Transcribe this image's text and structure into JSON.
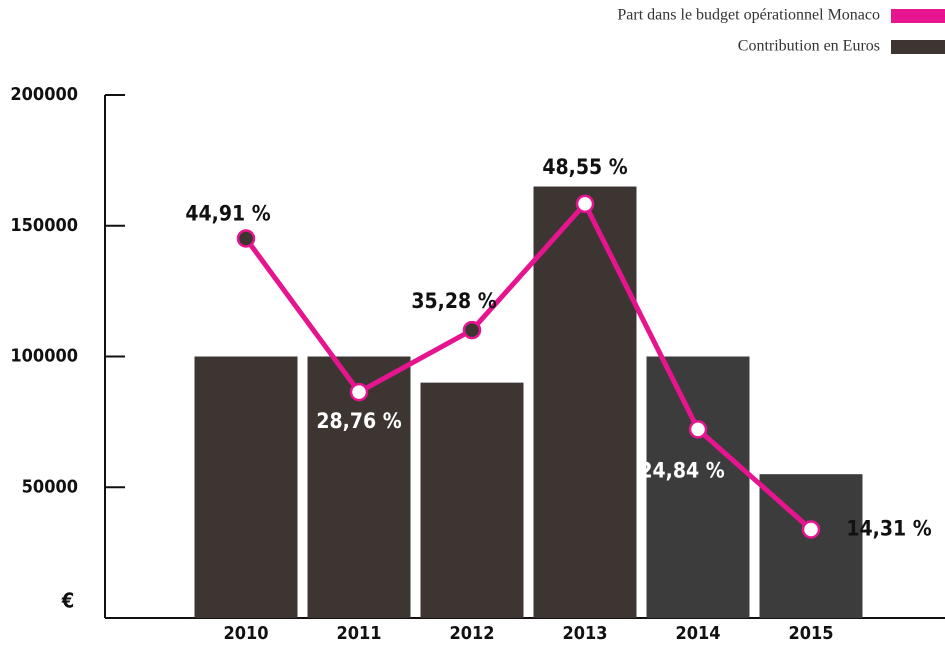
{
  "chart_data": {
    "type": "bar",
    "categories": [
      "2010",
      "2011",
      "2012",
      "2013",
      "2014",
      "2015"
    ],
    "y_label": "€",
    "ylim": [
      0,
      200000
    ],
    "yticks": [
      0,
      50000,
      100000,
      150000,
      200000
    ],
    "y2lim": [
      5,
      60
    ],
    "series": [
      {
        "name": "Contribution en Euros",
        "type": "bar",
        "color": "#3d3532",
        "colors": [
          "#3d3532",
          "#3d3532",
          "#3d3532",
          "#3d3532",
          "#3c3c3c",
          "#3c3c3c"
        ],
        "values": [
          100000,
          100000,
          90000,
          165000,
          100000,
          55000
        ]
      },
      {
        "name": "Part dans le budget opérationnel Monaco",
        "type": "line",
        "axis": "y2",
        "color": "#e6158f",
        "marker_fills": [
          "#3d3532",
          "#ffffff",
          "#3d3532",
          "#ffffff",
          "#ffffff",
          "#ffffff"
        ],
        "values": [
          44.91,
          28.76,
          35.28,
          48.55,
          24.84,
          14.31
        ],
        "value_labels": [
          "44,91 %",
          "28,76 %",
          "35,28 %",
          "48,55 %",
          "24,84 %",
          "14,31 %"
        ]
      }
    ],
    "legend": "top-right"
  }
}
